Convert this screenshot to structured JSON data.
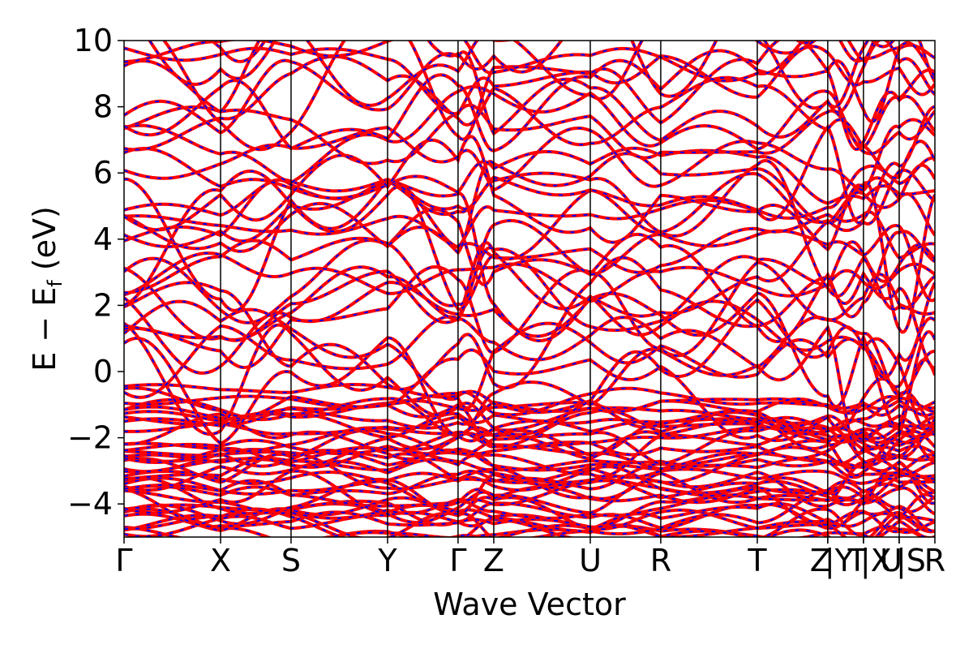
{
  "chart_data": {
    "type": "line",
    "title": "",
    "xlabel": "Wave Vector",
    "ylabel_main": "E − E",
    "ylabel_sub": "f",
    "ylabel_unit": " (eV)",
    "ylim": [
      -5,
      10
    ],
    "yticks": [
      -4,
      -2,
      0,
      2,
      4,
      6,
      8,
      10
    ],
    "ytick_labels": [
      "−4",
      "−2",
      "0",
      "2",
      "4",
      "6",
      "8",
      "10"
    ],
    "k_path": [
      {
        "label": "Γ",
        "pos": 0.0
      },
      {
        "label": "X",
        "pos": 1.0
      },
      {
        "label": "S",
        "pos": 1.73
      },
      {
        "label": "Y",
        "pos": 2.73
      },
      {
        "label": "Γ",
        "pos": 3.46
      },
      {
        "label": "Z",
        "pos": 3.83
      },
      {
        "label": "U",
        "pos": 4.83
      },
      {
        "label": "R",
        "pos": 5.56
      },
      {
        "label": "T",
        "pos": 6.56
      },
      {
        "label": "Z",
        "pos": 7.29
      },
      {
        "label": "|Y",
        "pos": 7.29
      },
      {
        "label": "T",
        "pos": 7.66
      },
      {
        "label": "|X",
        "pos": 7.66
      },
      {
        "label": "U",
        "pos": 8.03
      },
      {
        "label": "|S",
        "pos": 8.03
      },
      {
        "label": "R",
        "pos": 8.4
      }
    ],
    "xlim": [
      0.0,
      8.4
    ],
    "colors": {
      "band": "#ff0000",
      "band_overlay": "#0000ff",
      "frame": "#000000"
    },
    "legend": "none",
    "grid": false
  }
}
